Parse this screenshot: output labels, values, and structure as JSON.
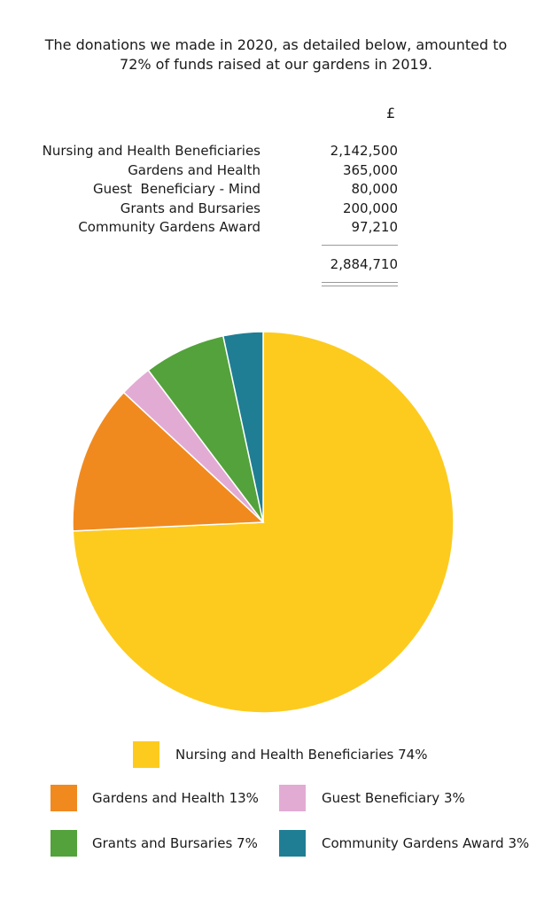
{
  "intro": {
    "line1": "The donations we made in 2020, as detailed below, amounted to",
    "line2": "72% of funds raised at our gardens in 2019."
  },
  "table": {
    "currency_header": "£",
    "rows": [
      {
        "label": "Nursing and Health Beneficiaries",
        "value": "2,142,500"
      },
      {
        "label": "Gardens and Health",
        "value": "365,000"
      },
      {
        "label": "Guest  Beneficiary - Mind",
        "value": "80,000"
      },
      {
        "label": "Grants and Bursaries",
        "value": "200,000"
      },
      {
        "label": "Community Gardens Award",
        "value": "97,210"
      }
    ],
    "total": "2,884,710"
  },
  "chart_data": {
    "type": "pie",
    "start": "12 o'clock",
    "direction": "clockwise",
    "slices": [
      {
        "legend": "Nursing and Health Beneficiaries 74%",
        "value": 2142500,
        "color": "#FDCB1E"
      },
      {
        "legend": "Gardens and Health 13%",
        "value": 365000,
        "color": "#F08A1F"
      },
      {
        "legend": "Guest Beneficiary 3%",
        "value": 80000,
        "color": "#E2ABD4"
      },
      {
        "legend": "Grants and Bursaries 7%",
        "value": 200000,
        "color": "#53A23B"
      },
      {
        "legend": "Community Gardens Award 3%",
        "value": 97210,
        "color": "#1F7E93"
      }
    ],
    "legend_placement": "bottom"
  }
}
